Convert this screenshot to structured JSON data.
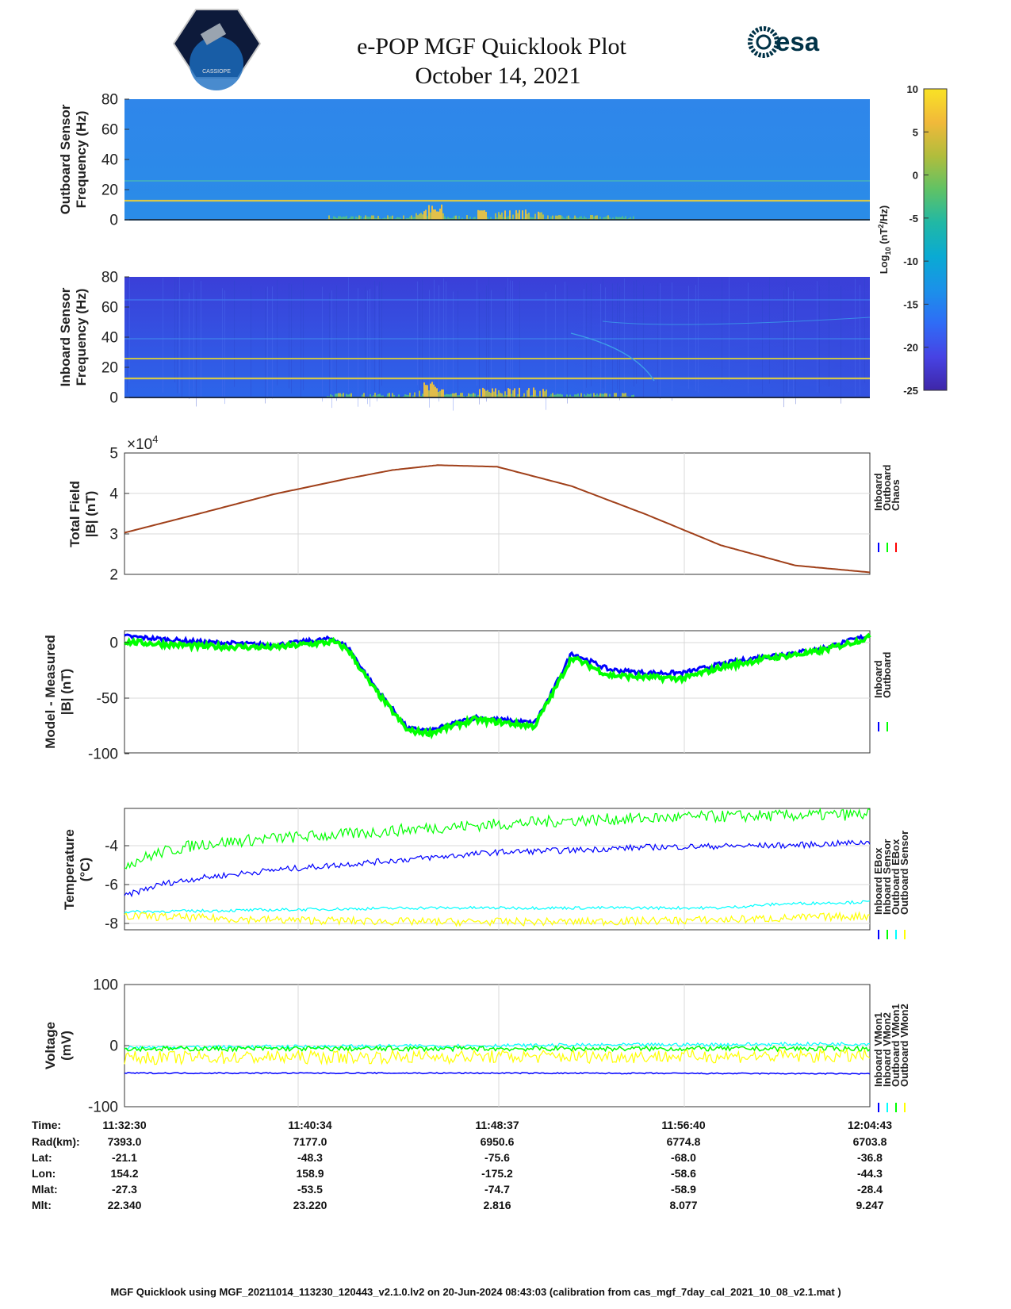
{
  "header": {
    "title": "e-POP MGF Quicklook Plot",
    "date": "October 14, 2021",
    "mission_logo": "CASSIOPE",
    "esa_logo": "esa"
  },
  "colorbar": {
    "label": "Log10 (nT²/Hz)",
    "label_main": "Log",
    "label_sub": "10",
    "label_unit": "(nT",
    "label_sup": "2",
    "label_tail": "/Hz)",
    "range": [
      -25,
      10
    ],
    "ticks": [
      "10",
      "5",
      "0",
      "-5",
      "-10",
      "-15",
      "-20",
      "-25"
    ],
    "colormap": [
      "#3e26a8",
      "#4743e4",
      "#2f6cf6",
      "#1b91e9",
      "#0aaad3",
      "#21b8a5",
      "#60c265",
      "#b1bd3c",
      "#f1b93a",
      "#f9e225"
    ]
  },
  "footer": "MGF Quicklook using MGF_20211014_113230_120443_v2.1.0.lv2 on 20-Jun-2024 08:43:03 (calibration from cas_mgf_7day_cal_2021_10_08_v2.1.mat )",
  "colors": {
    "inboard": "#0000ff",
    "outboard": "#00ff00",
    "chaos": "#ff0000",
    "inboard_ebox": "#0000ff",
    "inboard_sensor": "#00ff00",
    "outboard_ebox": "#00ffff",
    "outboard_sensor": "#ffff00"
  },
  "chart_data": [
    {
      "type": "heatmap",
      "ylabel": [
        "Outboard Sensor",
        "Frequency (Hz)"
      ],
      "ylim": [
        0,
        80
      ],
      "yticks": [
        "80",
        "60",
        "40",
        "20",
        "0"
      ],
      "description_lines_hz": [
        13,
        25
      ],
      "activity_window": "11:43-11:50"
    },
    {
      "type": "heatmap",
      "ylabel": [
        "Inboard Sensor",
        "Frequency (Hz)"
      ],
      "ylim": [
        0,
        80
      ],
      "yticks": [
        "80",
        "60",
        "40",
        "20",
        "0"
      ],
      "description_lines_hz": [
        13,
        25,
        64
      ]
    },
    {
      "type": "line",
      "ylabel": [
        "Total Field",
        "|B| (nT)"
      ],
      "ylim": [
        2,
        5
      ],
      "yticks": [
        "5",
        "4",
        "3",
        "2"
      ],
      "multiplier": "×10",
      "multiplier_exp": "4",
      "legend": [
        "Inboard",
        "Outboard",
        "Chaos"
      ],
      "legend_colors": [
        "#0000ff",
        "#00ff00",
        "#ff0000"
      ],
      "series": [
        {
          "name": "Chaos",
          "color": "#a0401a",
          "x": [
            0,
            0.1,
            0.2,
            0.3,
            0.36,
            0.42,
            0.5,
            0.6,
            0.7,
            0.8,
            0.9,
            1.0
          ],
          "values": [
            3.03,
            3.5,
            3.98,
            4.37,
            4.58,
            4.7,
            4.66,
            4.18,
            3.48,
            2.72,
            2.22,
            2.05
          ]
        }
      ]
    },
    {
      "type": "line",
      "ylabel": [
        "Model - Measured",
        "|B| (nT)"
      ],
      "ylim": [
        -100,
        10
      ],
      "yticks": [
        "0",
        "-50",
        "-100"
      ],
      "legend": [
        "Inboard",
        "Outboard"
      ],
      "legend_colors": [
        "#0000ff",
        "#00ff00"
      ],
      "series": [
        {
          "name": "Inboard",
          "color": "#0000ff",
          "x": [
            0,
            0.1,
            0.2,
            0.28,
            0.3,
            0.33,
            0.38,
            0.41,
            0.47,
            0.5,
            0.55,
            0.57,
            0.6,
            0.65,
            0.7,
            0.75,
            0.8,
            0.86,
            0.93,
            1.0
          ],
          "values": [
            5,
            0,
            -3,
            3,
            -5,
            -35,
            -78,
            -80,
            -68,
            -70,
            -73,
            -50,
            -10,
            -25,
            -28,
            -28,
            -20,
            -13,
            -7,
            6
          ]
        },
        {
          "name": "Outboard",
          "color": "#00ff00",
          "x": [
            0,
            0.1,
            0.2,
            0.28,
            0.3,
            0.33,
            0.38,
            0.41,
            0.47,
            0.5,
            0.55,
            0.57,
            0.6,
            0.65,
            0.7,
            0.75,
            0.8,
            0.86,
            0.93,
            1.0
          ],
          "values": [
            0,
            -4,
            -5,
            0,
            -7,
            -38,
            -80,
            -82,
            -70,
            -72,
            -76,
            -52,
            -14,
            -30,
            -32,
            -33,
            -23,
            -15,
            -9,
            4
          ]
        }
      ]
    },
    {
      "type": "line",
      "ylabel": [
        "Temperature",
        "(°C)"
      ],
      "ylim": [
        -8.3,
        -2.2
      ],
      "yticks": [
        "-4",
        "-6",
        "-8"
      ],
      "legend": [
        "Inboard EBox",
        "Inboard Sensor",
        "Outboard EBox",
        "Outboard Sensor"
      ],
      "legend_colors": [
        "#0000ff",
        "#00ff00",
        "#00ffff",
        "#ffff00"
      ],
      "series": [
        {
          "name": "Inboard Sensor",
          "color": "#00ff00",
          "x": [
            0,
            0.05,
            0.1,
            0.2,
            0.3,
            0.4,
            0.5,
            0.6,
            0.7,
            0.8,
            0.9,
            1.0
          ],
          "values": [
            -5.0,
            -4.4,
            -4.0,
            -3.7,
            -3.5,
            -3.2,
            -3.0,
            -2.8,
            -2.7,
            -2.6,
            -2.55,
            -2.5
          ]
        },
        {
          "name": "Inboard EBox",
          "color": "#0000ff",
          "x": [
            0,
            0.05,
            0.1,
            0.2,
            0.3,
            0.4,
            0.5,
            0.6,
            0.7,
            0.8,
            0.9,
            1.0
          ],
          "values": [
            -6.6,
            -6.0,
            -5.7,
            -5.3,
            -5.0,
            -4.7,
            -4.4,
            -4.3,
            -4.15,
            -4.1,
            -4.05,
            -3.9
          ]
        },
        {
          "name": "Outboard EBox",
          "color": "#00ffff",
          "x": [
            0,
            0.2,
            0.4,
            0.6,
            0.8,
            0.88,
            1.0
          ],
          "values": [
            -7.4,
            -7.3,
            -7.2,
            -7.2,
            -7.2,
            -7.0,
            -6.9
          ]
        },
        {
          "name": "Outboard Sensor",
          "color": "#ffff00",
          "x": [
            0,
            0.2,
            0.4,
            0.6,
            0.8,
            1.0
          ],
          "values": [
            -7.6,
            -7.8,
            -7.9,
            -7.9,
            -7.8,
            -7.6
          ]
        }
      ]
    },
    {
      "type": "line",
      "ylabel": [
        "Voltage",
        "(mV)"
      ],
      "ylim": [
        -100,
        100
      ],
      "yticks": [
        "100",
        "0",
        "-100"
      ],
      "legend": [
        "Inboard VMon1",
        "Inboard VMon2",
        "Outboard VMon1",
        "Outboard VMon2"
      ],
      "legend_colors": [
        "#0000ff",
        "#00ffff",
        "#00ff00",
        "#ffff00"
      ],
      "series": [
        {
          "name": "Inboard VMon2",
          "color": "#00ffff",
          "x": [
            0,
            0.5,
            1.0
          ],
          "values": [
            -3,
            0,
            3
          ]
        },
        {
          "name": "Outboard VMon1",
          "color": "#00ff00",
          "x": [
            0,
            0.5,
            1.0
          ],
          "values": [
            -5,
            -5,
            -5
          ]
        },
        {
          "name": "Outboard VMon2",
          "color": "#ffff00",
          "x": [
            0,
            0.5,
            1.0
          ],
          "values": [
            -20,
            -18,
            -17
          ]
        },
        {
          "name": "Inboard VMon1",
          "color": "#0000ff",
          "x": [
            0,
            0.5,
            1.0
          ],
          "values": [
            -45,
            -45,
            -46
          ]
        }
      ]
    }
  ],
  "ephemeris": {
    "row_labels": [
      "Time:",
      "Rad(km):",
      "Lat:",
      "Lon:",
      "Mlat:",
      "Mlt:"
    ],
    "columns": [
      [
        "11:32:30",
        "7393.0",
        "-21.1",
        "154.2",
        "-27.3",
        "22.340"
      ],
      [
        "11:40:34",
        "7177.0",
        "-48.3",
        "158.9",
        "-53.5",
        "23.220"
      ],
      [
        "11:48:37",
        "6950.6",
        "-75.6",
        "-175.2",
        "-74.7",
        "2.816"
      ],
      [
        "11:56:40",
        "6774.8",
        "-68.0",
        "-58.6",
        "-58.9",
        "8.077"
      ],
      [
        "12:04:43",
        "6703.8",
        "-36.8",
        "-44.3",
        "-28.4",
        "9.247"
      ]
    ]
  }
}
